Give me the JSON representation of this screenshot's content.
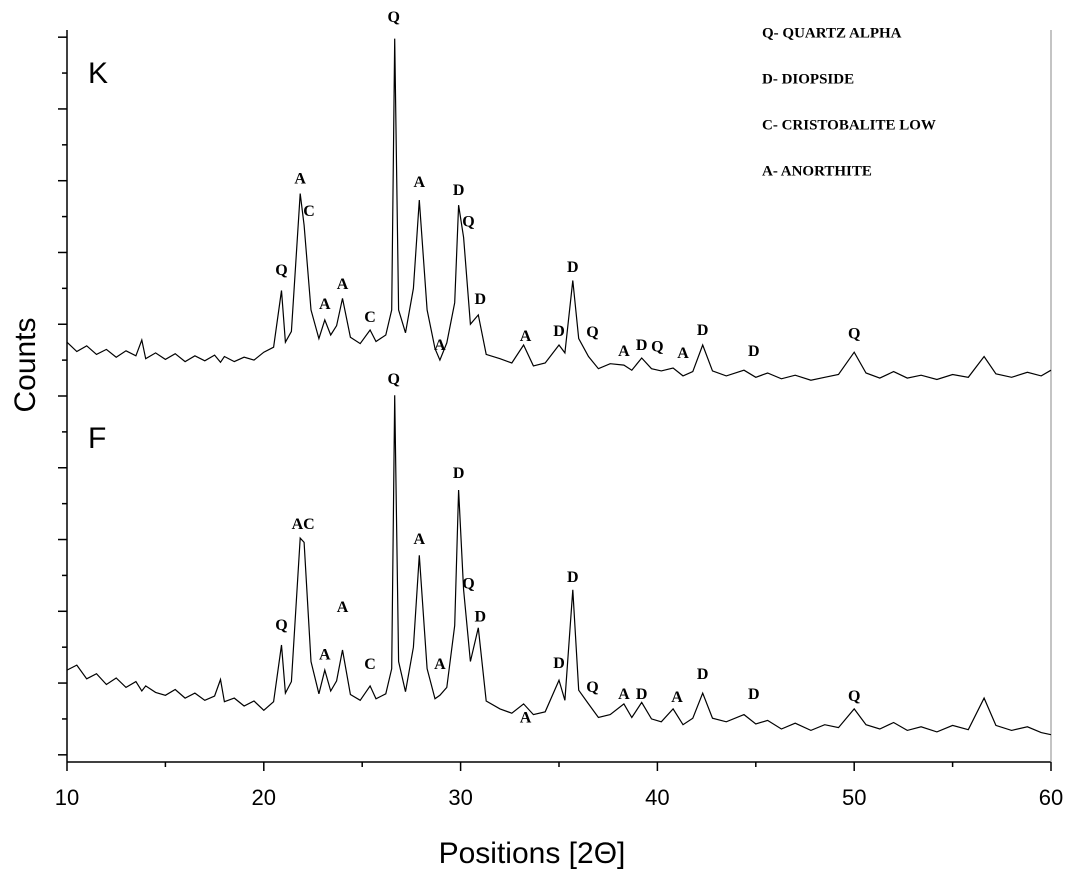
{
  "chart_data": {
    "type": "line",
    "xlabel": "Positions [2Θ]",
    "ylabel": "Counts",
    "xlim": [
      10,
      60
    ],
    "xticks": [
      10,
      20,
      30,
      40,
      50,
      60
    ],
    "xminorticks": [
      15,
      25,
      35,
      45,
      55
    ],
    "ylim": [
      -1,
      101
    ],
    "yticks": [
      0,
      10,
      20,
      30,
      40,
      50,
      60,
      70,
      80,
      90,
      100
    ],
    "yminorticks": [
      5,
      15,
      25,
      35,
      45,
      55,
      65,
      75,
      85,
      95
    ],
    "key": [
      "Q- QUARTZ ALPHA",
      "D- DIOPSIDE",
      "C- CRISTOBALITE LOW",
      "A- ANORTHITE"
    ],
    "x": [
      10,
      10.5,
      11,
      11.5,
      12,
      12.5,
      13,
      13.5,
      13.8,
      14,
      14.5,
      15,
      15.5,
      16,
      16.5,
      17,
      17.5,
      17.8,
      18,
      18.5,
      19,
      19.5,
      20,
      20.5,
      20.9,
      21.1,
      21.4,
      21.85,
      22.05,
      22.4,
      22.8,
      23.1,
      23.4,
      23.7,
      24.0,
      24.4,
      24.9,
      25.4,
      25.7,
      26.2,
      26.5,
      26.65,
      26.85,
      27.2,
      27.6,
      27.9,
      28.3,
      28.7,
      28.95,
      29.3,
      29.7,
      29.9,
      30.15,
      30.5,
      30.9,
      31.3,
      32,
      32.6,
      33.2,
      33.7,
      34.3,
      35.0,
      35.3,
      35.7,
      36.0,
      36.5,
      37,
      37.6,
      38.3,
      38.7,
      39.2,
      39.7,
      40.2,
      40.8,
      41.3,
      41.8,
      42.3,
      42.8,
      43.5,
      44.4,
      45,
      45.6,
      46.3,
      47,
      47.8,
      48.5,
      49.2,
      50.0,
      50.6,
      51.3,
      52,
      52.7,
      53.4,
      54.2,
      55,
      55.8,
      56.6,
      57.2,
      58,
      58.8,
      59.5,
      60
    ],
    "series": [
      {
        "name": "K",
        "color": "#000000",
        "values": [
          57.5,
          56.2,
          57,
          55.8,
          56.5,
          55.4,
          56.3,
          55.6,
          57.8,
          55.2,
          56,
          55.1,
          55.9,
          54.8,
          55.6,
          54.9,
          55.7,
          54.7,
          55.5,
          54.8,
          55.4,
          55,
          56.1,
          56.8,
          64.7,
          57.5,
          59,
          78.2,
          73.8,
          62,
          58,
          60.6,
          58.5,
          59.8,
          63.6,
          58.2,
          57.3,
          59.2,
          57.6,
          58.5,
          62,
          99.8,
          62,
          58.8,
          65,
          77.3,
          62,
          56.6,
          55,
          57.4,
          63,
          76.6,
          72.1,
          60,
          61.3,
          55.8,
          55.2,
          54.6,
          57.1,
          54.2,
          54.6,
          57.1,
          56,
          66.1,
          58,
          55.5,
          53.8,
          54.5,
          54.3,
          53.6,
          55.3,
          53.8,
          53.5,
          53.9,
          52.8,
          53.4,
          57.1,
          53.5,
          52.8,
          53.6,
          52.6,
          53.2,
          52.4,
          52.9,
          52.2,
          52.6,
          53,
          56.1,
          53.2,
          52.5,
          53.4,
          52.5,
          52.9,
          52.3,
          53,
          52.6,
          55.5,
          53.1,
          52.6,
          53.3,
          52.8,
          53.6
        ],
        "annotations": [
          {
            "text": "Q",
            "x": 20.9,
            "y": 67.4
          },
          {
            "text": "A",
            "x": 21.85,
            "y": 80.1
          },
          {
            "text": "C",
            "x": 22.3,
            "y": 75.6
          },
          {
            "text": "A",
            "x": 23.1,
            "y": 62.6
          },
          {
            "text": "A",
            "x": 24.0,
            "y": 65.4
          },
          {
            "text": "C",
            "x": 25.4,
            "y": 60.8
          },
          {
            "text": "Q",
            "x": 26.6,
            "y": 102.6
          },
          {
            "text": "A",
            "x": 27.9,
            "y": 79.6
          },
          {
            "text": "A",
            "x": 28.95,
            "y": 56.9
          },
          {
            "text": "D",
            "x": 29.9,
            "y": 78.5
          },
          {
            "text": "Q",
            "x": 30.4,
            "y": 74.1
          },
          {
            "text": "D",
            "x": 31.0,
            "y": 63.3
          },
          {
            "text": "A",
            "x": 33.3,
            "y": 58.2
          },
          {
            "text": "D",
            "x": 35.0,
            "y": 58.9
          },
          {
            "text": "D",
            "x": 35.7,
            "y": 67.8
          },
          {
            "text": "Q",
            "x": 36.7,
            "y": 58.7
          },
          {
            "text": "A",
            "x": 38.3,
            "y": 56.1
          },
          {
            "text": "D",
            "x": 39.2,
            "y": 56.9
          },
          {
            "text": "Q",
            "x": 40.0,
            "y": 56.7
          },
          {
            "text": "A",
            "x": 41.3,
            "y": 55.8
          },
          {
            "text": "D",
            "x": 42.3,
            "y": 59
          },
          {
            "text": "D",
            "x": 44.9,
            "y": 56.1
          },
          {
            "text": "Q",
            "x": 50.0,
            "y": 58.5
          }
        ]
      },
      {
        "name": "F",
        "color": "#000000",
        "values": [
          11.8,
          12.5,
          10.6,
          11.3,
          9.8,
          10.7,
          9.4,
          10.2,
          8.9,
          9.6,
          8.7,
          8.3,
          9.1,
          7.9,
          8.6,
          7.6,
          8.2,
          10.5,
          7.4,
          7.9,
          6.8,
          7.5,
          6.2,
          7.4,
          15.3,
          8.6,
          10.2,
          30.2,
          29.6,
          13,
          8.5,
          11.8,
          8.9,
          10.3,
          14.6,
          8.4,
          7.6,
          9.6,
          7.8,
          8.5,
          12,
          50.1,
          13,
          8.8,
          15,
          27.8,
          12,
          7.8,
          8.3,
          9.4,
          18,
          36.9,
          23,
          13,
          17.7,
          7.5,
          6.4,
          5.8,
          7.1,
          5.6,
          6,
          10.4,
          7.6,
          23,
          9,
          7.1,
          5.2,
          5.6,
          7.1,
          5.2,
          7.3,
          5,
          4.6,
          6.4,
          4.2,
          5.1,
          8.6,
          5.1,
          4.6,
          5.6,
          4.3,
          4.8,
          3.6,
          4.4,
          3.4,
          4.2,
          3.8,
          6.4,
          4.2,
          3.6,
          4.5,
          3.4,
          3.9,
          3.2,
          4.1,
          3.5,
          7.9,
          4.1,
          3.4,
          3.9,
          3.1,
          2.8
        ],
        "annotations": [
          {
            "text": "Q",
            "x": 20.9,
            "y": 17.9
          },
          {
            "text": "AC",
            "x": 22.0,
            "y": 32
          },
          {
            "text": "A",
            "x": 23.1,
            "y": 13.8
          },
          {
            "text": "A",
            "x": 24.0,
            "y": 20.4
          },
          {
            "text": "C",
            "x": 25.4,
            "y": 12.5
          },
          {
            "text": "Q",
            "x": 26.6,
            "y": 52.2
          },
          {
            "text": "A",
            "x": 27.9,
            "y": 29.9
          },
          {
            "text": "A",
            "x": 28.95,
            "y": 12.5
          },
          {
            "text": "D",
            "x": 29.9,
            "y": 39.1
          },
          {
            "text": "Q",
            "x": 30.4,
            "y": 23.7
          },
          {
            "text": "D",
            "x": 31.0,
            "y": 19.1
          },
          {
            "text": "A",
            "x": 33.3,
            "y": 5
          },
          {
            "text": "D",
            "x": 35.0,
            "y": 12.6
          },
          {
            "text": "D",
            "x": 35.7,
            "y": 24.6
          },
          {
            "text": "Q",
            "x": 36.7,
            "y": 9.3
          },
          {
            "text": "A",
            "x": 38.3,
            "y": 8.3
          },
          {
            "text": "D",
            "x": 39.2,
            "y": 8.3
          },
          {
            "text": "A",
            "x": 41.0,
            "y": 7.9
          },
          {
            "text": "D",
            "x": 42.3,
            "y": 11.1
          },
          {
            "text": "D",
            "x": 44.9,
            "y": 8.3
          },
          {
            "text": "Q",
            "x": 50.0,
            "y": 8
          }
        ]
      }
    ]
  }
}
